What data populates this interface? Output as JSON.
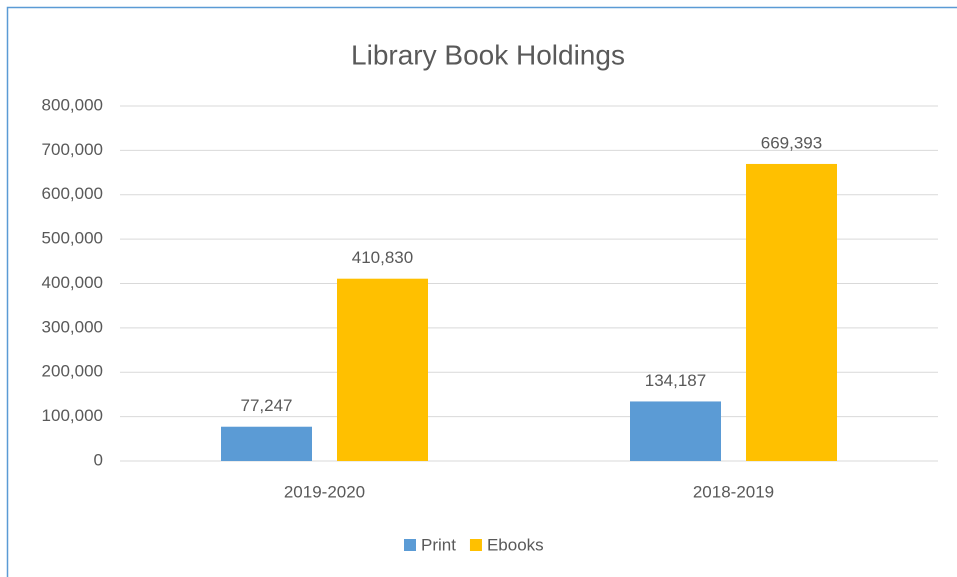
{
  "chart_data": {
    "type": "bar",
    "title": "Library Book Holdings",
    "categories": [
      "2019-2020",
      "2018-2019"
    ],
    "series": [
      {
        "name": "Print",
        "color": "#5b9bd5",
        "values": [
          77247,
          134187
        ],
        "value_labels": [
          "77,247",
          "134,187"
        ]
      },
      {
        "name": "Ebooks",
        "color": "#ffc000",
        "values": [
          410830,
          669393
        ],
        "value_labels": [
          "410,830",
          "669,393"
        ]
      }
    ],
    "ylim": [
      0,
      800000
    ],
    "yticks": [
      0,
      {
        "value": 100000,
        "label": "100,000"
      },
      {
        "value": 200000,
        "label": "200,000"
      },
      {
        "value": 300000,
        "label": "300,000"
      },
      {
        "value": 400000,
        "label": "400,000"
      },
      {
        "value": 500000,
        "label": "500,000"
      },
      {
        "value": 600000,
        "label": "600,000"
      },
      {
        "value": 700000,
        "label": "700,000"
      },
      {
        "value": 800000,
        "label": "800,000"
      }
    ],
    "grid": true,
    "legend": "bottom"
  }
}
